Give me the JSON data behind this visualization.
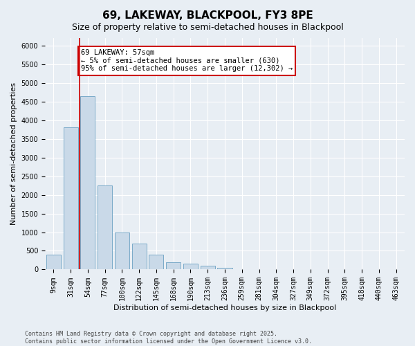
{
  "title": "69, LAKEWAY, BLACKPOOL, FY3 8PE",
  "subtitle": "Size of property relative to semi-detached houses in Blackpool",
  "xlabel": "Distribution of semi-detached houses by size in Blackpool",
  "ylabel": "Number of semi-detached properties",
  "categories": [
    "9sqm",
    "31sqm",
    "54sqm",
    "77sqm",
    "100sqm",
    "122sqm",
    "145sqm",
    "168sqm",
    "190sqm",
    "213sqm",
    "236sqm",
    "259sqm",
    "281sqm",
    "304sqm",
    "327sqm",
    "349sqm",
    "372sqm",
    "395sqm",
    "418sqm",
    "440sqm",
    "463sqm"
  ],
  "values": [
    400,
    3800,
    4650,
    2250,
    1000,
    700,
    400,
    200,
    150,
    100,
    50,
    0,
    0,
    0,
    0,
    0,
    0,
    0,
    0,
    0,
    0
  ],
  "bar_color": "#c9d9e8",
  "bar_edge_color": "#7aaac8",
  "vline_x": 1.5,
  "vline_color": "#cc0000",
  "annotation_text": "69 LAKEWAY: 57sqm\n← 5% of semi-detached houses are smaller (630)\n95% of semi-detached houses are larger (12,302) →",
  "annotation_box_color": "#ffffff",
  "annotation_box_edge": "#cc0000",
  "ylim": [
    0,
    6200
  ],
  "yticks": [
    0,
    500,
    1000,
    1500,
    2000,
    2500,
    3000,
    3500,
    4000,
    4500,
    5000,
    5500,
    6000
  ],
  "background_color": "#e8eef4",
  "plot_bg_color": "#e8eef4",
  "footer_line1": "Contains HM Land Registry data © Crown copyright and database right 2025.",
  "footer_line2": "Contains public sector information licensed under the Open Government Licence v3.0.",
  "title_fontsize": 11,
  "subtitle_fontsize": 9,
  "tick_fontsize": 7,
  "label_fontsize": 8,
  "annotation_fontsize": 7.5
}
